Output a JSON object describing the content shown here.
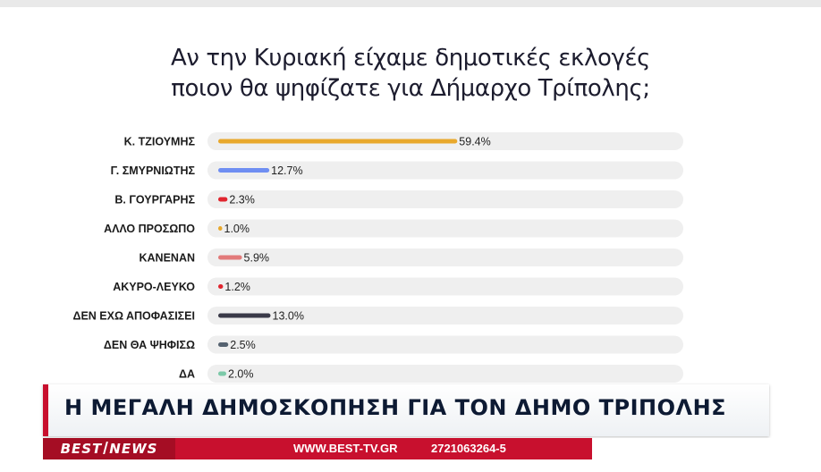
{
  "title": {
    "line1": "Αν την Κυριακή είχαμε δημοτικές εκλογές",
    "line2": "ποιον θα ψηφίζατε για Δήμαρχο Τρίπολης;"
  },
  "chart_data": {
    "type": "bar",
    "orientation": "horizontal",
    "categories": [
      "Κ. ΤΖΙΟΥΜΗΣ",
      "Γ. ΣΜΥΡΝΙΩΤΗΣ",
      "Β. ΓΟΥΡΓΑΡΗΣ",
      "ΑΛΛΟ ΠΡΟΣΩΠΟ",
      "ΚΑΝΕΝΑΝ",
      "ΑΚΥΡΟ-ΛΕΥΚΟ",
      "ΔΕΝ ΕΧΩ ΑΠΟΦΑΣΙΣΕΙ",
      "ΔΕΝ ΘΑ ΨΗΦΙΣΩ",
      "ΔΑ"
    ],
    "values": [
      59.4,
      12.7,
      2.3,
      1.0,
      5.9,
      1.2,
      13.0,
      2.5,
      2.0
    ],
    "value_labels": [
      "59.4%",
      "12.7%",
      "2.3%",
      "1.0%",
      "5.9%",
      "1.2%",
      "13.0%",
      "2.5%",
      "2.0%"
    ],
    "colors": [
      "#e8a82c",
      "#6f8ef2",
      "#e0252e",
      "#e8a82c",
      "#e27a7a",
      "#e0252e",
      "#3a3a48",
      "#556270",
      "#7cc9a8"
    ],
    "track_color": "#efefef",
    "xlim": [
      0,
      100
    ]
  },
  "banner": {
    "headline": "Η ΜΕΓΑΛΗ ΔΗΜΟΣΚΟΠΗΣΗ ΓΙΑ ΤΟΝ ΔΗΜΟ ΤΡΙΠΟΛΗΣ"
  },
  "ticker": {
    "logo_left": "BEST",
    "logo_right": "NEWS",
    "website": "WWW.BEST-TV.GR",
    "phone": "2721063264-5"
  }
}
